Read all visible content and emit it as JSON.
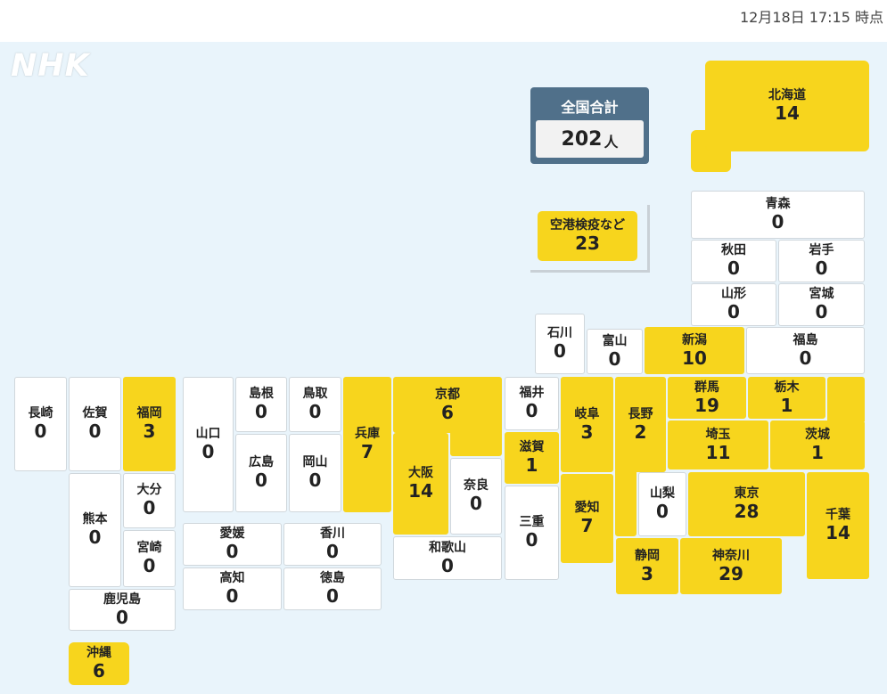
{
  "timestamp": "12月18日 17:15 時点",
  "logo": "NHK",
  "colors": {
    "highlight": "#f7d51d",
    "zero": "#ffffff",
    "background": "#e9f4fb",
    "total_box": "#50708a"
  },
  "total": {
    "title": "全国合計",
    "value": "202",
    "unit": "人"
  },
  "airport": {
    "name": "空港検疫など",
    "count": "23"
  },
  "prefectures": {
    "hokkaido": {
      "name": "北海道",
      "count": "14"
    },
    "aomori": {
      "name": "青森",
      "count": "0"
    },
    "akita": {
      "name": "秋田",
      "count": "0"
    },
    "iwate": {
      "name": "岩手",
      "count": "0"
    },
    "yamagata": {
      "name": "山形",
      "count": "0"
    },
    "miyagi": {
      "name": "宮城",
      "count": "0"
    },
    "ishikawa": {
      "name": "石川",
      "count": "0"
    },
    "toyama": {
      "name": "富山",
      "count": "0"
    },
    "niigata": {
      "name": "新潟",
      "count": "10"
    },
    "fukushima": {
      "name": "福島",
      "count": "0"
    },
    "nagasaki": {
      "name": "長崎",
      "count": "0"
    },
    "saga": {
      "name": "佐賀",
      "count": "0"
    },
    "fukuoka": {
      "name": "福岡",
      "count": "3"
    },
    "yamaguchi": {
      "name": "山口",
      "count": "0"
    },
    "shimane": {
      "name": "島根",
      "count": "0"
    },
    "tottori": {
      "name": "鳥取",
      "count": "0"
    },
    "hiroshima": {
      "name": "広島",
      "count": "0"
    },
    "okayama": {
      "name": "岡山",
      "count": "0"
    },
    "hyogo": {
      "name": "兵庫",
      "count": "7"
    },
    "kyoto": {
      "name": "京都",
      "count": "6"
    },
    "fukui": {
      "name": "福井",
      "count": "0"
    },
    "gifu": {
      "name": "岐阜",
      "count": "3"
    },
    "nagano": {
      "name": "長野",
      "count": "2"
    },
    "gunma": {
      "name": "群馬",
      "count": "19"
    },
    "tochigi": {
      "name": "栃木",
      "count": "1"
    },
    "saitama": {
      "name": "埼玉",
      "count": "11"
    },
    "ibaraki": {
      "name": "茨城",
      "count": "1"
    },
    "shiga": {
      "name": "滋賀",
      "count": "1"
    },
    "osaka": {
      "name": "大阪",
      "count": "14"
    },
    "nara": {
      "name": "奈良",
      "count": "0"
    },
    "mie": {
      "name": "三重",
      "count": "0"
    },
    "aichi": {
      "name": "愛知",
      "count": "7"
    },
    "yamanashi": {
      "name": "山梨",
      "count": "0"
    },
    "tokyo": {
      "name": "東京",
      "count": "28"
    },
    "chiba": {
      "name": "千葉",
      "count": "14"
    },
    "kumamoto": {
      "name": "熊本",
      "count": "0"
    },
    "oita": {
      "name": "大分",
      "count": "0"
    },
    "miyazaki": {
      "name": "宮崎",
      "count": "0"
    },
    "ehime": {
      "name": "愛媛",
      "count": "0"
    },
    "kagawa": {
      "name": "香川",
      "count": "0"
    },
    "kochi": {
      "name": "高知",
      "count": "0"
    },
    "tokushima": {
      "name": "徳島",
      "count": "0"
    },
    "wakayama": {
      "name": "和歌山",
      "count": "0"
    },
    "shizuoka": {
      "name": "静岡",
      "count": "3"
    },
    "kanagawa": {
      "name": "神奈川",
      "count": "29"
    },
    "kagoshima": {
      "name": "鹿児島",
      "count": "0"
    },
    "okinawa": {
      "name": "沖縄",
      "count": "6"
    }
  }
}
